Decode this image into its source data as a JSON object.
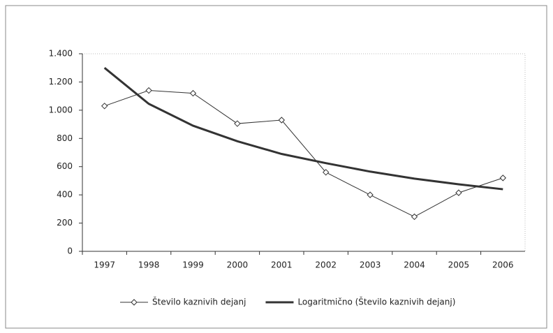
{
  "chart_data": {
    "type": "line",
    "categories": [
      "1997",
      "1998",
      "1999",
      "2000",
      "2001",
      "2002",
      "2003",
      "2004",
      "2005",
      "2006"
    ],
    "series": [
      {
        "name": "Število kaznivih dejanj",
        "color": "#333333",
        "marker": "diamond",
        "values": [
          1030,
          1140,
          1120,
          905,
          930,
          560,
          400,
          245,
          415,
          520
        ]
      },
      {
        "name": "Logaritmično (Število kaznivih dejanj)",
        "color": "#333333",
        "values": [
          1300,
          1045,
          890,
          780,
          690,
          625,
          565,
          515,
          475,
          440
        ]
      }
    ],
    "ylim": [
      0,
      1400
    ],
    "yticks": [
      0,
      200,
      400,
      600,
      800,
      {
        "value": 1000,
        "label": "1.000"
      },
      {
        "value": 1200,
        "label": "1.200"
      },
      {
        "value": 1400,
        "label": "1.400"
      }
    ],
    "grid": false,
    "legend": "bottom"
  }
}
